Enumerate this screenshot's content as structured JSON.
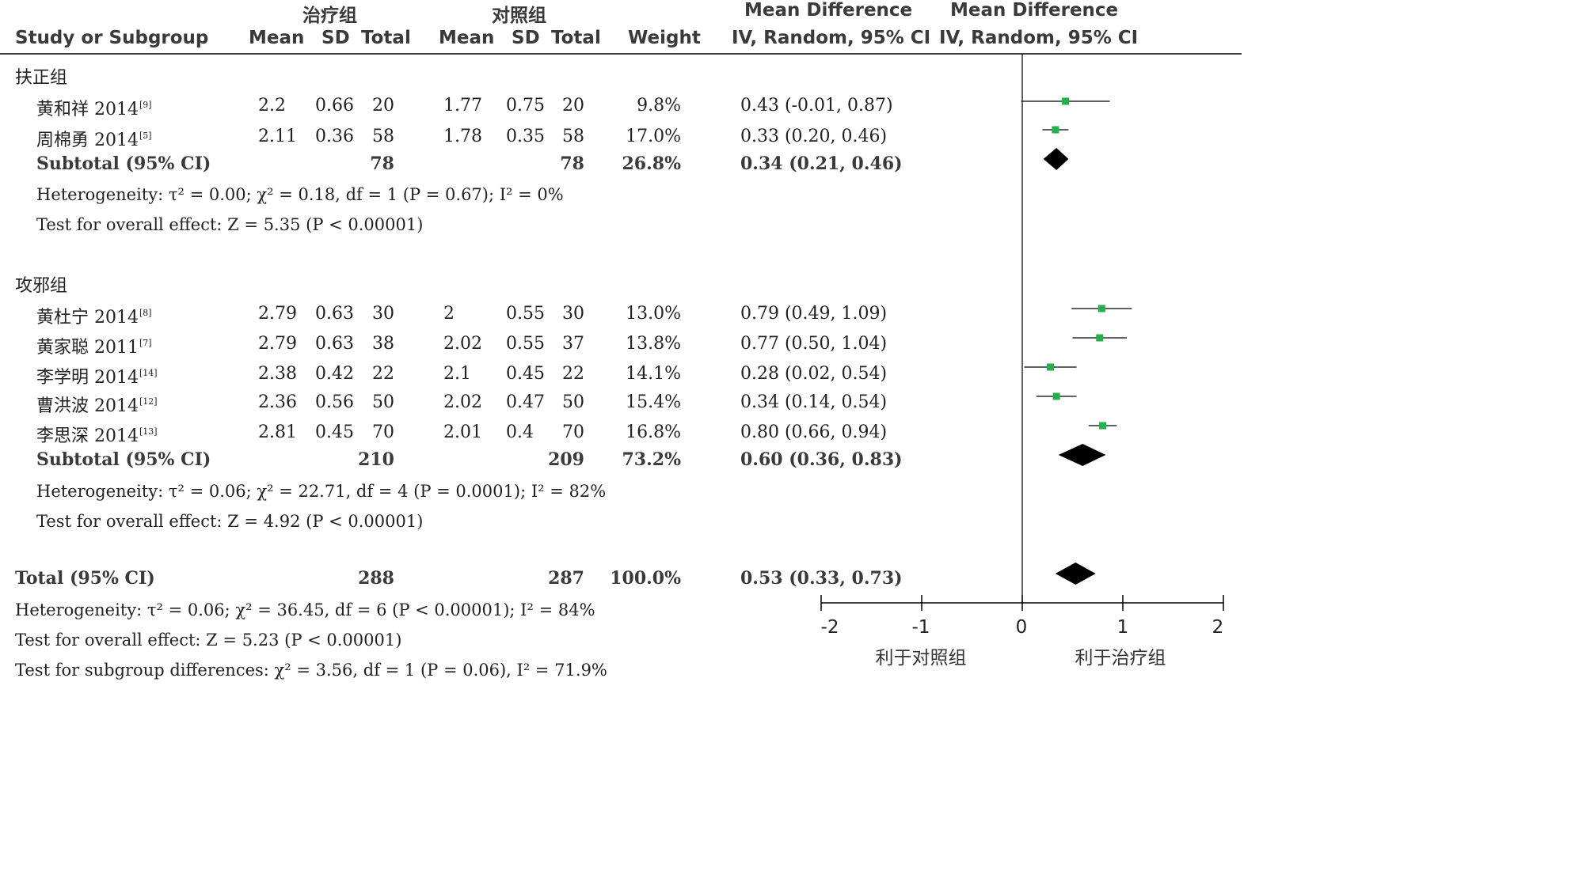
{
  "header": {
    "group_treat": "治疗组",
    "group_ctrl": "对照组",
    "md_title_1": "Mean Difference",
    "md_sub_1": "IV, Random, 95% CI",
    "md_title_2": "Mean Difference",
    "md_sub_2": "IV, Random, 95% CI",
    "study": "Study or Subgroup",
    "mean": "Mean",
    "sd": "SD",
    "total": "Total",
    "weight": "Weight"
  },
  "subgroups": [
    {
      "name": "扶正组",
      "studies": [
        {
          "name": "黄和祥 2014",
          "ref": "[9]",
          "t_mean": "2.2",
          "t_sd": "0.66",
          "t_total": "20",
          "c_mean": "1.77",
          "c_sd": "0.75",
          "c_total": "20",
          "weight": "9.8%",
          "ci": "0.43 (-0.01, 0.87)"
        },
        {
          "name": "周棉勇 2014",
          "ref": "[5]",
          "t_mean": "2.11",
          "t_sd": "0.36",
          "t_total": "58",
          "c_mean": "1.78",
          "c_sd": "0.35",
          "c_total": "58",
          "weight": "17.0%",
          "ci": "0.33 (0.20, 0.46)"
        }
      ],
      "subtotal": {
        "label": "Subtotal (95% CI)",
        "t_total": "78",
        "c_total": "78",
        "weight": "26.8%",
        "ci": "0.34 (0.21, 0.46)"
      },
      "heterogeneity": "Heterogeneity: τ² = 0.00; χ² = 0.18, df = 1 (P = 0.67); I² = 0%",
      "overall": "Test for overall effect: Z = 5.35 (P < 0.00001)"
    },
    {
      "name": "攻邪组",
      "studies": [
        {
          "name": "黄杜宁 2014",
          "ref": "[8]",
          "t_mean": "2.79",
          "t_sd": "0.63",
          "t_total": "30",
          "c_mean": "2",
          "c_sd": "0.55",
          "c_total": "30",
          "weight": "13.0%",
          "ci": "0.79 (0.49, 1.09)"
        },
        {
          "name": "黄家聪 2011",
          "ref": "[7]",
          "t_mean": "2.79",
          "t_sd": "0.63",
          "t_total": "38",
          "c_mean": "2.02",
          "c_sd": "0.55",
          "c_total": "37",
          "weight": "13.8%",
          "ci": "0.77 (0.50, 1.04)"
        },
        {
          "name": "李学明 2014",
          "ref": "[14]",
          "t_mean": "2.38",
          "t_sd": "0.42",
          "t_total": "22",
          "c_mean": "2.1",
          "c_sd": "0.45",
          "c_total": "22",
          "weight": "14.1%",
          "ci": "0.28 (0.02, 0.54)"
        },
        {
          "name": "曹洪波 2014",
          "ref": "[12]",
          "t_mean": "2.36",
          "t_sd": "0.56",
          "t_total": "50",
          "c_mean": "2.02",
          "c_sd": "0.47",
          "c_total": "50",
          "weight": "15.4%",
          "ci": "0.34 (0.14, 0.54)"
        },
        {
          "name": "李思深 2014",
          "ref": "[13]",
          "t_mean": "2.81",
          "t_sd": "0.45",
          "t_total": "70",
          "c_mean": "2.01",
          "c_sd": "0.4",
          "c_total": "70",
          "weight": "16.8%",
          "ci": "0.80 (0.66, 0.94)"
        }
      ],
      "subtotal": {
        "label": "Subtotal (95% CI)",
        "t_total": "210",
        "c_total": "209",
        "weight": "73.2%",
        "ci": "0.60 (0.36, 0.83)"
      },
      "heterogeneity": "Heterogeneity: τ² = 0.06; χ² = 22.71, df = 4 (P = 0.0001); I² = 82%",
      "overall": "Test for overall effect: Z = 4.92 (P < 0.00001)"
    }
  ],
  "total": {
    "label": "Total (95% CI)",
    "t_total": "288",
    "c_total": "287",
    "weight": "100.0%",
    "ci": "0.53 (0.33, 0.73)"
  },
  "footer": {
    "heterogeneity": "Heterogeneity: τ² = 0.06; χ² = 36.45, df = 6 (P < 0.00001); I² = 84%",
    "overall": "Test for overall effect: Z = 5.23 (P < 0.00001)",
    "subgroup_diff": "Test for subgroup differences: χ² = 3.56, df = 1 (P = 0.06), I² = 71.9%"
  },
  "axis": {
    "ticks": [
      "-2",
      "-1",
      "0",
      "1",
      "2"
    ],
    "favours_left": "利于对照组",
    "favours_right": "利于治疗组"
  },
  "colors": {
    "marker": "#22b14c",
    "diamond": "#000000",
    "line": "#000000"
  },
  "chart_data": {
    "type": "forest",
    "xlim": [
      -2,
      2
    ],
    "studies": [
      {
        "name": "黄和祥 2014",
        "md": 0.43,
        "lo": -0.01,
        "hi": 0.87,
        "weight": 9.8
      },
      {
        "name": "周棉勇 2014",
        "md": 0.33,
        "lo": 0.2,
        "hi": 0.46,
        "weight": 17.0
      },
      {
        "name": "黄杜宁 2014",
        "md": 0.79,
        "lo": 0.49,
        "hi": 1.09,
        "weight": 13.0
      },
      {
        "name": "黄家聪 2011",
        "md": 0.77,
        "lo": 0.5,
        "hi": 1.04,
        "weight": 13.8
      },
      {
        "name": "李学明 2014",
        "md": 0.28,
        "lo": 0.02,
        "hi": 0.54,
        "weight": 14.1
      },
      {
        "name": "曹洪波 2014",
        "md": 0.34,
        "lo": 0.14,
        "hi": 0.54,
        "weight": 15.4
      },
      {
        "name": "李思深 2014",
        "md": 0.8,
        "lo": 0.66,
        "hi": 0.94,
        "weight": 16.8
      }
    ],
    "diamonds": [
      {
        "name": "Subtotal 扶正组",
        "md": 0.34,
        "lo": 0.21,
        "hi": 0.46
      },
      {
        "name": "Subtotal 攻邪组",
        "md": 0.6,
        "lo": 0.36,
        "hi": 0.83
      },
      {
        "name": "Total",
        "md": 0.53,
        "lo": 0.33,
        "hi": 0.73
      }
    ]
  }
}
